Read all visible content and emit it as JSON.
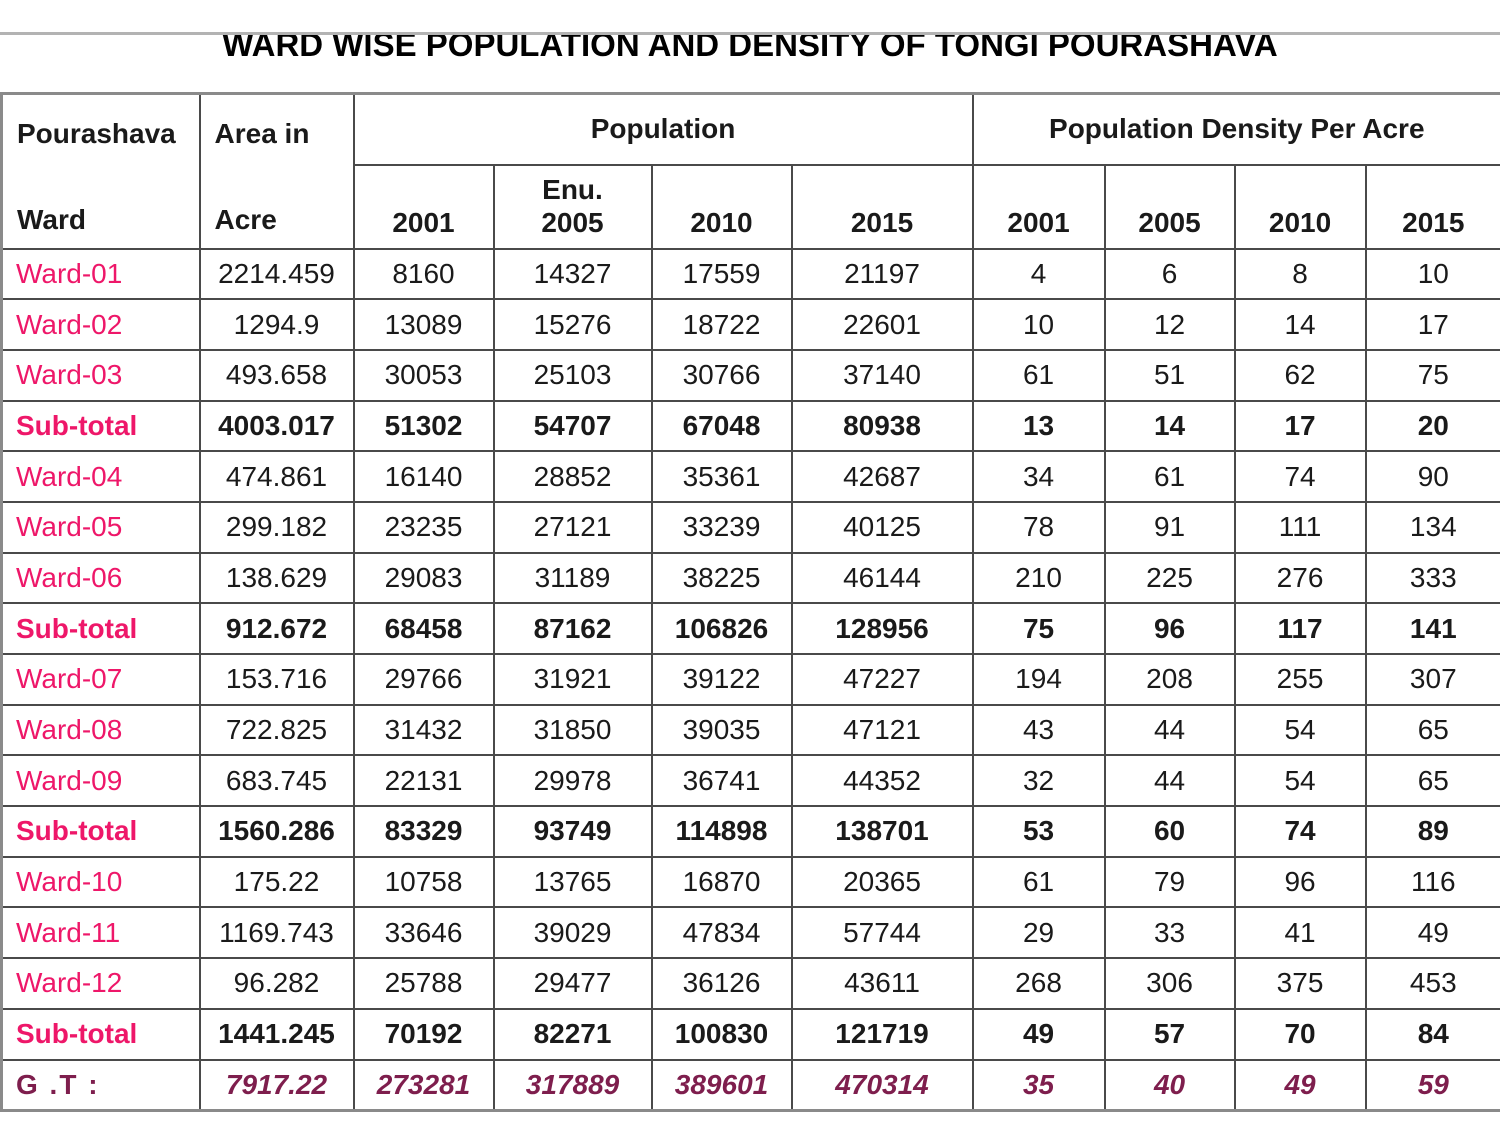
{
  "title": "WARD WISE POPULATION AND DENSITY OF TONGI POURASHAVA",
  "colors": {
    "ward_label_pink": "#EE1769",
    "grand_total_maroon": "#7E1E4D",
    "data_text_black": "#1a1a1a",
    "grid_border_gray": "#4a4a4a"
  },
  "table": {
    "header": {
      "pourashava_line1": "Pourashava",
      "pourashava_line2": "Ward",
      "area_line1": "Area in",
      "area_line2": "Acre",
      "population_group_label": "Population",
      "density_group_label": "Population Density Per Acre",
      "population_year_cells": [
        {
          "prefix": "",
          "year": "2001"
        },
        {
          "prefix": "Enu.",
          "year": "2005"
        },
        {
          "prefix": "",
          "year": "2010"
        },
        {
          "prefix": "",
          "year": "2015"
        }
      ],
      "density_year_cells": [
        {
          "prefix": "",
          "year": "2001"
        },
        {
          "prefix": "",
          "year": "2005"
        },
        {
          "prefix": "",
          "year": "2010"
        },
        {
          "prefix": "",
          "year": "2015"
        }
      ]
    },
    "rows": [
      {
        "type": "ward",
        "label": "Ward-01",
        "area": "2214.459",
        "population": [
          "8160",
          "14327",
          "17559",
          "21197"
        ],
        "density": [
          "4",
          "6",
          "8",
          "10"
        ]
      },
      {
        "type": "ward",
        "label": "Ward-02",
        "area": "1294.9",
        "population": [
          "13089",
          "15276",
          "18722",
          "22601"
        ],
        "density": [
          "10",
          "12",
          "14",
          "17"
        ]
      },
      {
        "type": "ward",
        "label": "Ward-03",
        "area": "493.658",
        "population": [
          "30053",
          "25103",
          "30766",
          "37140"
        ],
        "density": [
          "61",
          "51",
          "62",
          "75"
        ]
      },
      {
        "type": "subtotal",
        "label": "Sub-total",
        "area": "4003.017",
        "population": [
          "51302",
          "54707",
          "67048",
          "80938"
        ],
        "density": [
          "13",
          "14",
          "17",
          "20"
        ]
      },
      {
        "type": "ward",
        "label": "Ward-04",
        "area": "474.861",
        "population": [
          "16140",
          "28852",
          "35361",
          "42687"
        ],
        "density": [
          "34",
          "61",
          "74",
          "90"
        ]
      },
      {
        "type": "ward",
        "label": "Ward-05",
        "area": "299.182",
        "population": [
          "23235",
          "27121",
          "33239",
          "40125"
        ],
        "density": [
          "78",
          "91",
          "111",
          "134"
        ]
      },
      {
        "type": "ward",
        "label": "Ward-06",
        "area": "138.629",
        "population": [
          "29083",
          "31189",
          "38225",
          "46144"
        ],
        "density": [
          "210",
          "225",
          "276",
          "333"
        ]
      },
      {
        "type": "subtotal",
        "label": "Sub-total",
        "area": "912.672",
        "population": [
          "68458",
          "87162",
          "106826",
          "128956"
        ],
        "density": [
          "75",
          "96",
          "117",
          "141"
        ]
      },
      {
        "type": "ward",
        "label": "Ward-07",
        "area": "153.716",
        "population": [
          "29766",
          "31921",
          "39122",
          "47227"
        ],
        "density": [
          "194",
          "208",
          "255",
          "307"
        ]
      },
      {
        "type": "ward",
        "label": "Ward-08",
        "area": "722.825",
        "population": [
          "31432",
          "31850",
          "39035",
          "47121"
        ],
        "density": [
          "43",
          "44",
          "54",
          "65"
        ]
      },
      {
        "type": "ward",
        "label": "Ward-09",
        "area": "683.745",
        "population": [
          "22131",
          "29978",
          "36741",
          "44352"
        ],
        "density": [
          "32",
          "44",
          "54",
          "65"
        ]
      },
      {
        "type": "subtotal",
        "label": "Sub-total",
        "area": "1560.286",
        "population": [
          "83329",
          "93749",
          "114898",
          "138701"
        ],
        "density": [
          "53",
          "60",
          "74",
          "89"
        ]
      },
      {
        "type": "ward",
        "label": "Ward-10",
        "area": "175.22",
        "population": [
          "10758",
          "13765",
          "16870",
          "20365"
        ],
        "density": [
          "61",
          "79",
          "96",
          "116"
        ]
      },
      {
        "type": "ward",
        "label": "Ward-11",
        "area": "1169.743",
        "population": [
          "33646",
          "39029",
          "47834",
          "57744"
        ],
        "density": [
          "29",
          "33",
          "41",
          "49"
        ]
      },
      {
        "type": "ward",
        "label": "Ward-12",
        "area": "96.282",
        "population": [
          "25788",
          "29477",
          "36126",
          "43611"
        ],
        "density": [
          "268",
          "306",
          "375",
          "453"
        ]
      },
      {
        "type": "subtotal",
        "label": "Sub-total",
        "area": "1441.245",
        "population": [
          "70192",
          "82271",
          "100830",
          "121719"
        ],
        "density": [
          "49",
          "57",
          "70",
          "84"
        ]
      },
      {
        "type": "grandtotal",
        "label": "G .T :",
        "area": "7917.22",
        "population": [
          "273281",
          "317889",
          "389601",
          "470314"
        ],
        "density": [
          "35",
          "40",
          "49",
          "59"
        ]
      }
    ]
  }
}
